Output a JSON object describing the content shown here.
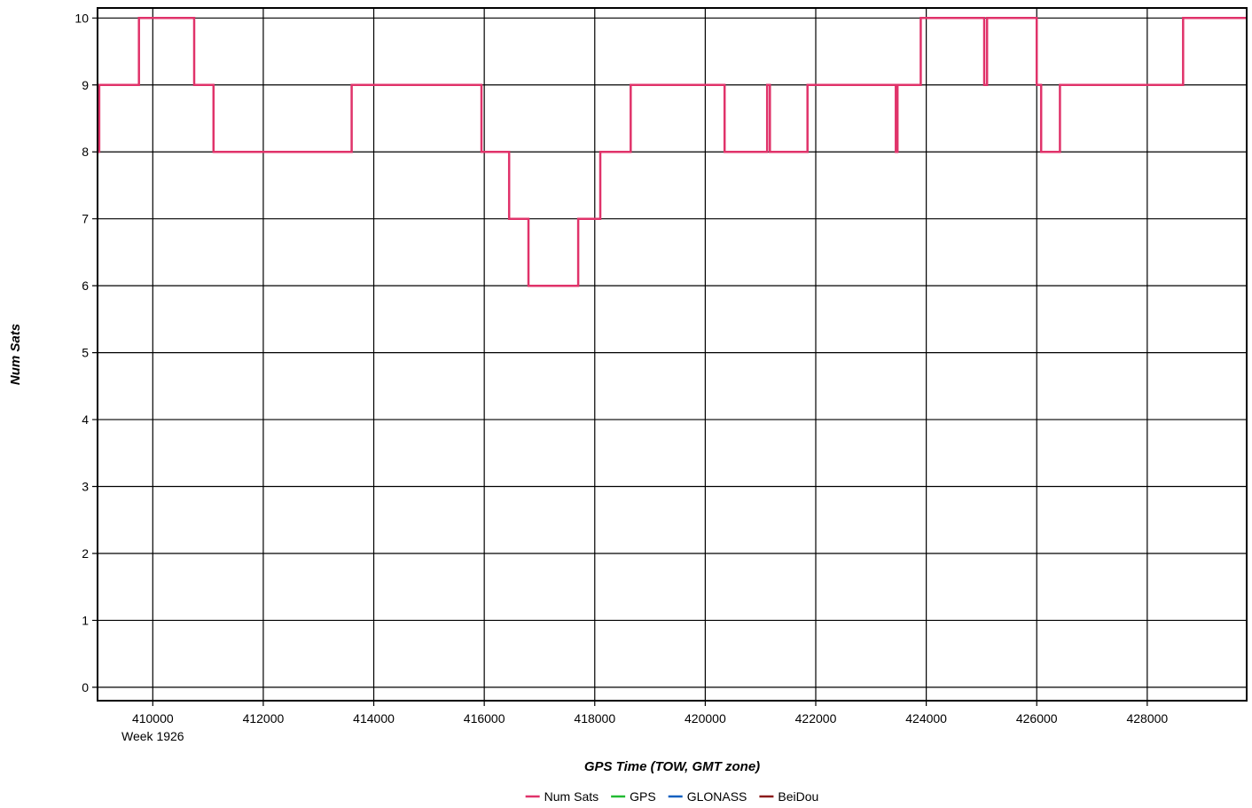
{
  "chart_data": {
    "type": "line",
    "xlabel": "GPS Time (TOW, GMT zone)",
    "ylabel": "Num Sats",
    "week_label": "Week 1926",
    "xlim": [
      409000,
      429800
    ],
    "ylim": [
      -0.2,
      10.15
    ],
    "x_ticks": [
      410000,
      412000,
      414000,
      416000,
      418000,
      420000,
      422000,
      424000,
      426000,
      428000
    ],
    "y_ticks": [
      0,
      1,
      2,
      3,
      4,
      5,
      6,
      7,
      8,
      9,
      10
    ],
    "grid": true,
    "legend_position": "bottom-center",
    "legend": [
      {
        "name": "Num Sats",
        "color": "#e0336a"
      },
      {
        "name": "GPS",
        "color": "#22bb33"
      },
      {
        "name": "GLONASS",
        "color": "#1060c0"
      },
      {
        "name": "BeiDou",
        "color": "#8b1a1a"
      }
    ],
    "series": [
      {
        "name": "Num Sats",
        "color": "#e0336a",
        "step": true,
        "points": [
          [
            409000,
            8
          ],
          [
            409030,
            9
          ],
          [
            409750,
            10
          ],
          [
            410750,
            9
          ],
          [
            411100,
            8
          ],
          [
            413600,
            9
          ],
          [
            415950,
            8
          ],
          [
            416450,
            7
          ],
          [
            416800,
            6
          ],
          [
            417700,
            7
          ],
          [
            418100,
            8
          ],
          [
            418650,
            9
          ],
          [
            420350,
            8
          ],
          [
            421120,
            9
          ],
          [
            421170,
            8
          ],
          [
            421850,
            9
          ],
          [
            423450,
            8
          ],
          [
            423480,
            9
          ],
          [
            423900,
            10
          ],
          [
            425050,
            9
          ],
          [
            425100,
            10
          ],
          [
            426000,
            9
          ],
          [
            426080,
            8
          ],
          [
            426420,
            9
          ],
          [
            428650,
            10
          ],
          [
            429800,
            10
          ]
        ]
      }
    ]
  }
}
